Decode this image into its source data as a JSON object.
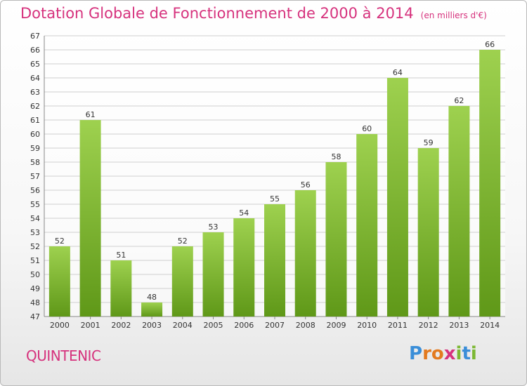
{
  "title": "Dotation Globale de Fonctionnement de 2000 à 2014",
  "unit_note": "(en milliers d'€)",
  "commune": "QUINTENIC",
  "logo": {
    "letters": [
      "P",
      "r",
      "o",
      "x",
      "i",
      "t",
      "i"
    ],
    "colors": [
      "#3a8ed8",
      "#e37a1f",
      "#e37a1f",
      "#d6327d",
      "#7cb833",
      "#3a8ed8",
      "#7cb833"
    ]
  },
  "colors": {
    "bar_light": "#9ed14f",
    "bar_dark": "#5f9818",
    "title": "#d6327d",
    "grid": "#cfcfcf"
  },
  "chart_data": {
    "type": "bar",
    "categories": [
      "2000",
      "2001",
      "2002",
      "2003",
      "2004",
      "2005",
      "2006",
      "2007",
      "2008",
      "2009",
      "2010",
      "2011",
      "2012",
      "2013",
      "2014"
    ],
    "values": [
      52,
      61,
      51,
      48,
      52,
      53,
      54,
      55,
      56,
      58,
      60,
      64,
      59,
      62,
      66
    ],
    "ylim": [
      47,
      67
    ],
    "yticks": [
      47,
      48,
      49,
      50,
      51,
      52,
      53,
      54,
      55,
      56,
      57,
      58,
      59,
      60,
      61,
      62,
      63,
      64,
      65,
      66,
      67
    ],
    "grid": true,
    "data_labels": true
  }
}
